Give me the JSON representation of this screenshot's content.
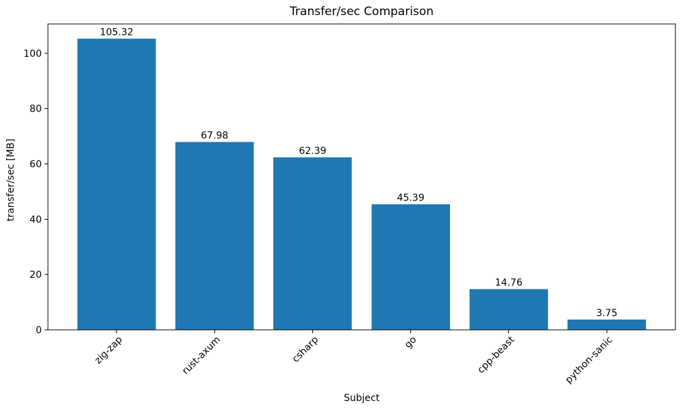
{
  "chart_data": {
    "type": "bar",
    "title": "Transfer/sec Comparison",
    "xlabel": "Subject",
    "ylabel": "transfer/sec [MB]",
    "categories": [
      "zig-zap",
      "rust-axum",
      "csharp",
      "go",
      "cpp-beast",
      "python-sanic"
    ],
    "values": [
      105.32,
      67.98,
      62.39,
      45.39,
      14.76,
      3.75
    ],
    "bar_labels": [
      "105.32",
      "67.98",
      "62.39",
      "45.39",
      "14.76",
      "3.75"
    ],
    "yticks": [
      0,
      20,
      40,
      60,
      80,
      100
    ],
    "ylim": [
      0,
      110.6
    ],
    "x_tick_rotation": 45,
    "grid": false,
    "bar_color": "#1f77b4",
    "axis_color": "#000000",
    "text_color": "#000000",
    "background_color": "#ffffff"
  }
}
